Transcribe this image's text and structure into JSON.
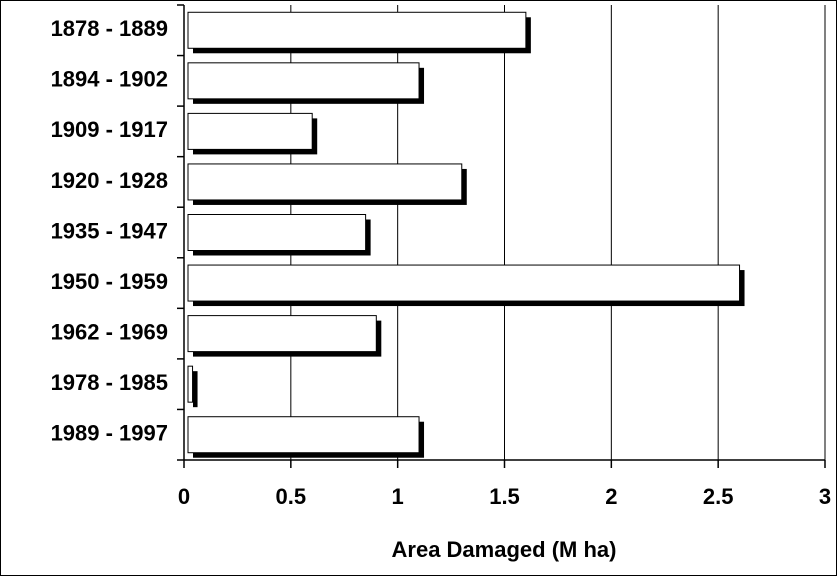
{
  "chart_data": {
    "type": "barh",
    "categories": [
      "1878 - 1889",
      "1894 - 1902",
      "1909 - 1917",
      "1920 - 1928",
      "1935 - 1947",
      "1950 - 1959",
      "1962 - 1969",
      "1978 - 1985",
      "1989 - 1997"
    ],
    "values": [
      1.6,
      1.1,
      0.6,
      1.3,
      0.85,
      2.6,
      0.9,
      0.04,
      1.1
    ],
    "color": "#ffffff",
    "shadow_color": "#000000",
    "xlabel": "Area Damaged (M ha)",
    "xlim": [
      0,
      3
    ],
    "xticks": [
      0,
      0.5,
      1,
      1.5,
      2,
      2.5,
      3
    ],
    "grid": true
  }
}
